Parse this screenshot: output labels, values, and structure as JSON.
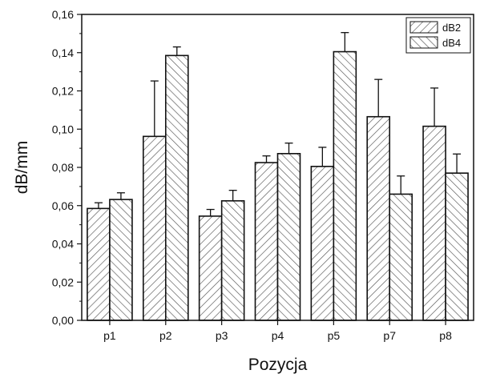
{
  "chart_data": {
    "type": "bar",
    "title": "",
    "xlabel": "Pozycja",
    "ylabel": "dB/mm",
    "categories": [
      "p1",
      "p2",
      "p3",
      "p4",
      "p5",
      "p7",
      "p8"
    ],
    "ylim": [
      0,
      0.16
    ],
    "yticks": [
      "0,00",
      "0,02",
      "0,04",
      "0,06",
      "0,08",
      "0,10",
      "0,12",
      "0,14",
      "0,16"
    ],
    "grid": false,
    "legend_position": "top-right",
    "series": [
      {
        "name": "dB2",
        "pattern": "hatch-forward",
        "values": [
          0.0585,
          0.0962,
          0.0545,
          0.0825,
          0.0805,
          0.1065,
          0.1015
        ],
        "errors": [
          0.003,
          0.029,
          0.0035,
          0.0035,
          0.01,
          0.0195,
          0.02
        ]
      },
      {
        "name": "dB4",
        "pattern": "hatch-backward",
        "values": [
          0.0632,
          0.1385,
          0.0625,
          0.0872,
          0.1405,
          0.066,
          0.077
        ],
        "errors": [
          0.0035,
          0.0045,
          0.0055,
          0.0055,
          0.01,
          0.0095,
          0.01
        ]
      }
    ],
    "colors": {
      "bar_stroke": "#111111",
      "hatch": "#555555",
      "axis": "#111111",
      "background": "#ffffff"
    }
  }
}
